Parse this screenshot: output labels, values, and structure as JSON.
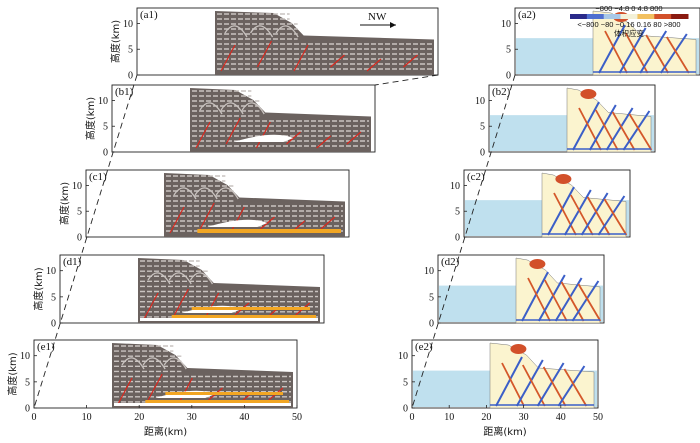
{
  "figure": {
    "nw_label": "NW",
    "y_label": "高度(km)",
    "x_label": "距离(km)",
    "legend": {
      "title": "体积应变",
      "top_ticks": [
        "−800",
        "−4.8",
        "0",
        "4.8",
        "800"
      ],
      "bottom_ticks": [
        "<−800",
        "−80",
        "−0.16",
        "0.16",
        "80",
        ">800"
      ],
      "colors": [
        "#2a2a8a",
        "#4f6fd0",
        "#a8c8e8",
        "#f3f1d8",
        "#f2c060",
        "#d2502a",
        "#8a1a10"
      ]
    },
    "y_ticks": [
      "0",
      "5",
      "10"
    ],
    "x_ticks": [
      "0",
      "10",
      "20",
      "30",
      "40",
      "50"
    ],
    "rows": [
      {
        "left_label": "(a1)",
        "right_label": "(a2)"
      },
      {
        "left_label": "(b1)",
        "right_label": "(b2)"
      },
      {
        "left_label": "(c1)",
        "right_label": "(c2)"
      },
      {
        "left_label": "(d1)",
        "right_label": "(d2)"
      },
      {
        "left_label": "(e1)",
        "right_label": "(e2)"
      }
    ],
    "colors": {
      "rock_dark": "#6b625f",
      "rock_light": "#c9c3c0",
      "fault_red": "#d8281e",
      "fluid_orange": "#f2a623",
      "strain_bg": "#bfe0ee",
      "strain_yellow": "#fbf4cf"
    }
  }
}
